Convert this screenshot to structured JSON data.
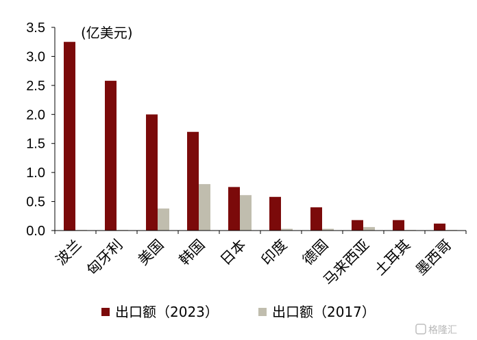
{
  "chart_data": {
    "type": "bar",
    "unit_label": "(亿美元)",
    "categories": [
      "波兰",
      "匈牙利",
      "美国",
      "韩国",
      "日本",
      "印度",
      "德国",
      "马来西亚",
      "土耳其",
      "墨西哥"
    ],
    "series": [
      {
        "name": "出口额（2023）",
        "color": "#7b0a0a",
        "values": [
          3.25,
          2.58,
          2.0,
          1.7,
          0.75,
          0.58,
          0.4,
          0.18,
          0.18,
          0.12
        ]
      },
      {
        "name": "出口额（2017）",
        "color": "#c0bdae",
        "values": [
          0.01,
          0.01,
          0.38,
          0.8,
          0.61,
          0.03,
          0.03,
          0.06,
          0.01,
          0.01
        ]
      }
    ],
    "ylim": [
      0,
      3.5
    ],
    "yticks": [
      "0.0",
      "0.5",
      "1.0",
      "1.5",
      "2.0",
      "2.5",
      "3.0",
      "3.5"
    ],
    "grid": false,
    "legend_position": "bottom"
  },
  "watermark": "格隆汇"
}
